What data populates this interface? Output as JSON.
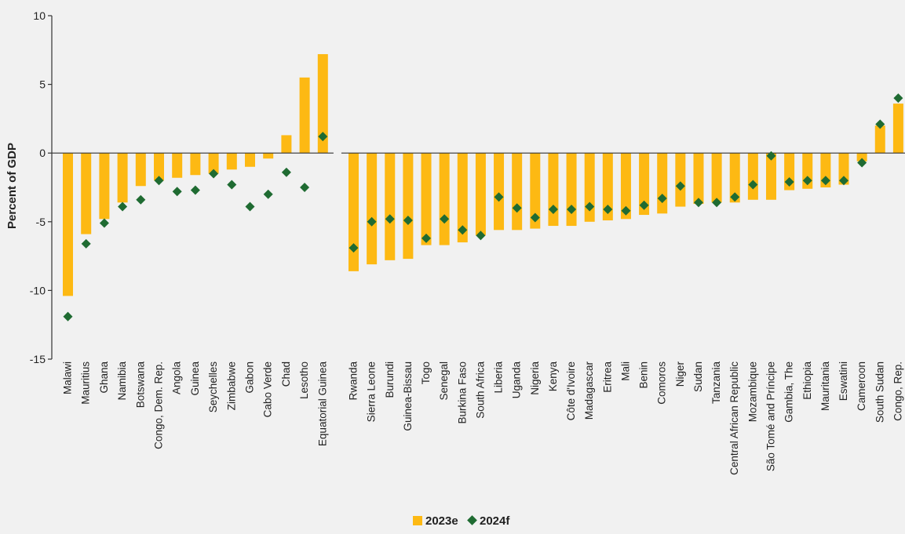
{
  "chart_data": {
    "type": "bar",
    "title": "",
    "xlabel": "",
    "ylabel": "Percent of GDP",
    "ylim": [
      -15,
      10
    ],
    "yticks": [
      -15,
      -10,
      -5,
      0,
      5,
      10
    ],
    "grid": false,
    "legend_position": "bottom-center",
    "colors": {
      "bar": "#fdb913",
      "marker": "#1f6b32",
      "axis": "#333333",
      "background": "#f1f1f1"
    },
    "groups": [
      {
        "categories": [
          "Malawi",
          "Mauritius",
          "Ghana",
          "Namibia",
          "Botswana",
          "Congo, Dem. Rep.",
          "Angola",
          "Guinea",
          "Seychelles",
          "Zimbabwe",
          "Gabon",
          "Cabo Verde",
          "Chad",
          "Lesotho",
          "Equatorial Guinea"
        ],
        "bars": [
          -10.4,
          -5.9,
          -4.8,
          -3.6,
          -2.4,
          -2.0,
          -1.8,
          -1.6,
          -1.5,
          -1.2,
          -1.0,
          -0.4,
          1.3,
          5.5,
          7.2
        ],
        "markers": [
          -11.9,
          -6.6,
          -5.1,
          -3.9,
          -3.4,
          -2.0,
          -2.8,
          -2.7,
          -1.5,
          -2.3,
          -3.9,
          -3.0,
          -1.4,
          -2.5,
          1.2
        ]
      },
      {
        "categories": [
          "Rwanda",
          "Sierra Leone",
          "Burundi",
          "Guinea-Bissau",
          "Togo",
          "Senegal",
          "Burkina Faso",
          "South Africa",
          "Liberia",
          "Uganda",
          "Nigeria",
          "Kenya",
          "Côte d'Ivoire",
          "Madagascar",
          "Eritrea",
          "Mali",
          "Benin",
          "Comoros",
          "Niger",
          "Sudan",
          "Tanzania",
          "Central African Republic",
          "Mozambique",
          "São Tomé and Príncipe",
          "Gambia, The",
          "Ethiopia",
          "Mauritania",
          "Eswatini",
          "Cameroon",
          "South Sudan",
          "Congo, Rep."
        ],
        "bars": [
          -8.6,
          -8.1,
          -7.8,
          -7.7,
          -6.7,
          -6.7,
          -6.5,
          -6.0,
          -5.6,
          -5.6,
          -5.5,
          -5.3,
          -5.3,
          -5.0,
          -4.9,
          -4.8,
          -4.5,
          -4.4,
          -3.9,
          -3.7,
          -3.6,
          -3.6,
          -3.4,
          -3.4,
          -2.7,
          -2.6,
          -2.5,
          -2.3,
          -0.6,
          2.0,
          3.6
        ],
        "markers": [
          -6.9,
          -5.0,
          -4.8,
          -4.9,
          -6.2,
          -4.8,
          -5.6,
          -6.0,
          -3.2,
          -4.0,
          -4.7,
          -4.1,
          -4.1,
          -3.9,
          -4.1,
          -4.2,
          -3.8,
          -3.3,
          -2.4,
          -3.6,
          -3.6,
          -3.2,
          -2.3,
          -0.2,
          -2.1,
          -2.0,
          -2.0,
          -2.0,
          -0.7,
          2.1,
          4.0
        ]
      }
    ],
    "series": [
      {
        "name": "2023e",
        "kind": "bar"
      },
      {
        "name": "2024f",
        "kind": "marker"
      }
    ]
  }
}
